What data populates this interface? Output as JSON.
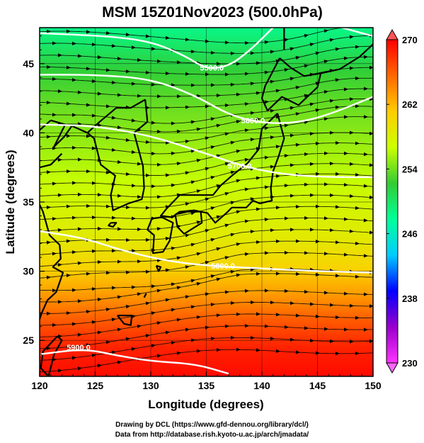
{
  "chart_data": {
    "type": "heatmap",
    "title": "MSM 15Z01Nov2023 (500.0hPa)",
    "xlabel": "Longitude (degrees)",
    "ylabel": "Latitude  (degrees)",
    "xlim": [
      120,
      150
    ],
    "ylim": [
      22.4,
      47.6
    ],
    "x_ticks": [
      120,
      125,
      130,
      135,
      140,
      145,
      150
    ],
    "y_ticks": [
      25,
      30,
      35,
      40,
      45
    ],
    "colorbar": {
      "min": 230,
      "max": 270,
      "ticks": [
        230,
        238,
        246,
        254,
        262,
        270
      ],
      "colors": [
        "#ff33ff",
        "#9900cc",
        "#0000ff",
        "#00ccff",
        "#00ff99",
        "#33cc33",
        "#ccff00",
        "#ffcc00",
        "#ff6600",
        "#ff0000"
      ]
    },
    "field_stops": [
      {
        "lat": 47.6,
        "value": 248.5
      },
      {
        "lat": 44.5,
        "value": 252
      },
      {
        "lat": 41.5,
        "value": 254
      },
      {
        "lat": 36.5,
        "value": 256.5
      },
      {
        "lat": 32.5,
        "value": 258.5
      },
      {
        "lat": 30.2,
        "value": 260.5
      },
      {
        "lat": 28.5,
        "value": 263
      },
      {
        "lat": 26.5,
        "value": 266
      },
      {
        "lat": 24.5,
        "value": 268.5
      },
      {
        "lat": 22.4,
        "value": 269.5
      }
    ],
    "contour_label_text": "5500.0",
    "contours": [
      {
        "label": "5900.0",
        "points": [
          [
            120,
            24.0
          ],
          [
            124,
            24.4
          ],
          [
            127,
            23.9
          ],
          [
            130,
            23.5
          ],
          [
            134,
            23.3
          ],
          [
            137,
            22.6
          ]
        ],
        "label_at": [
          123.5,
          24.5
        ]
      },
      {
        "label": "5800.0",
        "points": [
          [
            120,
            32.9
          ],
          [
            124,
            32.4
          ],
          [
            127,
            31.6
          ],
          [
            131,
            30.8
          ],
          [
            135,
            30.4
          ],
          [
            140,
            30.2
          ],
          [
            145,
            30.0
          ],
          [
            150,
            29.9
          ]
        ],
        "label_at": [
          136.5,
          30.4
        ]
      },
      {
        "label": "5700.0",
        "points": [
          [
            120,
            40.6
          ],
          [
            125,
            40.5
          ],
          [
            130,
            39.8
          ],
          [
            135,
            38.5
          ],
          [
            139,
            37.4
          ],
          [
            143,
            36.9
          ],
          [
            147,
            36.8
          ],
          [
            150,
            36.8
          ]
        ],
        "label_at": [
          138.0,
          37.6
        ]
      },
      {
        "label": "5600.0",
        "points": [
          [
            120,
            44.2
          ],
          [
            125,
            44.2
          ],
          [
            130,
            43.9
          ],
          [
            134,
            42.7
          ],
          [
            137,
            41.3
          ],
          [
            140,
            40.7
          ],
          [
            143,
            40.7
          ],
          [
            146,
            41.3
          ],
          [
            150,
            42.6
          ]
        ],
        "label_at": [
          139.2,
          40.9
        ]
      },
      {
        "label": "5500.0",
        "points": [
          [
            120,
            47.2
          ],
          [
            126,
            47.0
          ],
          [
            130,
            46.6
          ],
          [
            133,
            45.6
          ],
          [
            135,
            44.6
          ],
          [
            137,
            44.8
          ],
          [
            139,
            46.0
          ],
          [
            141,
            47.6
          ]
        ],
        "label_at": [
          135.5,
          44.7
        ]
      },
      {
        "label": "",
        "points": [
          [
            147.2,
            47.6
          ],
          [
            149,
            47.2
          ],
          [
            150,
            47.0
          ]
        ],
        "label_at": null
      }
    ],
    "coastlines": [
      [
        [
          141.6,
          45.4
        ],
        [
          142.6,
          44.7
        ],
        [
          143.8,
          44.1
        ],
        [
          145.3,
          44.3
        ],
        [
          145.0,
          43.3
        ],
        [
          143.3,
          42.0
        ],
        [
          141.8,
          42.6
        ],
        [
          140.5,
          41.6
        ],
        [
          140.0,
          42.5
        ],
        [
          140.3,
          43.4
        ],
        [
          141.6,
          45.4
        ]
      ],
      [
        [
          141.4,
          41.4
        ],
        [
          142.0,
          39.6
        ],
        [
          141.5,
          38.3
        ],
        [
          141.0,
          37.2
        ],
        [
          140.8,
          36.0
        ],
        [
          140.9,
          35.1
        ],
        [
          139.8,
          34.9
        ],
        [
          139.2,
          35.1
        ],
        [
          138.6,
          34.6
        ],
        [
          137.3,
          34.6
        ],
        [
          136.8,
          34.2
        ],
        [
          135.8,
          33.5
        ],
        [
          135.1,
          34.2
        ],
        [
          133.9,
          34.4
        ],
        [
          132.6,
          34.3
        ],
        [
          131.9,
          33.9
        ],
        [
          130.9,
          34.0
        ],
        [
          131.4,
          34.5
        ],
        [
          132.6,
          35.5
        ],
        [
          134.0,
          35.5
        ],
        [
          135.6,
          35.5
        ],
        [
          136.3,
          36.2
        ],
        [
          137.3,
          36.9
        ],
        [
          138.7,
          37.8
        ],
        [
          139.7,
          38.8
        ],
        [
          140.0,
          40.3
        ],
        [
          141.4,
          41.4
        ]
      ],
      [
        [
          130.1,
          33.8
        ],
        [
          131.0,
          33.9
        ],
        [
          132.0,
          33.5
        ],
        [
          131.7,
          32.2
        ],
        [
          131.1,
          31.4
        ],
        [
          130.2,
          31.3
        ],
        [
          130.3,
          32.6
        ],
        [
          129.7,
          33.0
        ],
        [
          130.1,
          33.8
        ]
      ],
      [
        [
          132.2,
          34.1
        ],
        [
          133.3,
          34.3
        ],
        [
          134.5,
          34.3
        ],
        [
          134.6,
          33.5
        ],
        [
          133.0,
          32.7
        ],
        [
          132.4,
          33.2
        ],
        [
          132.2,
          34.1
        ]
      ],
      [
        [
          121.6,
          25.3
        ],
        [
          122.0,
          25.0
        ],
        [
          121.3,
          24.0
        ],
        [
          120.8,
          22.4
        ],
        [
          120.1,
          23.0
        ],
        [
          120.3,
          24.2
        ],
        [
          121.6,
          25.3
        ]
      ],
      [
        [
          129.5,
          42.4
        ],
        [
          129.7,
          40.8
        ],
        [
          128.5,
          40.0
        ],
        [
          129.3,
          37.6
        ],
        [
          129.4,
          36.0
        ],
        [
          129.2,
          35.2
        ],
        [
          128.0,
          34.9
        ],
        [
          126.6,
          34.4
        ],
        [
          126.4,
          35.5
        ],
        [
          126.8,
          36.9
        ],
        [
          125.5,
          37.7
        ],
        [
          124.9,
          39.6
        ],
        [
          124.3,
          40.0
        ],
        [
          125.4,
          40.8
        ],
        [
          126.9,
          41.8
        ],
        [
          128.2,
          41.8
        ],
        [
          129.5,
          42.4
        ]
      ],
      [
        [
          121.0,
          40.9
        ],
        [
          122.3,
          40.6
        ],
        [
          121.3,
          39.0
        ],
        [
          122.2,
          39.7
        ],
        [
          122.9,
          40.5
        ],
        [
          124.3,
          40.0
        ]
      ],
      [
        [
          120.0,
          40.2
        ],
        [
          121.0,
          40.9
        ]
      ],
      [
        [
          121.8,
          31.9
        ],
        [
          121.9,
          30.9
        ],
        [
          121.2,
          30.3
        ],
        [
          122.1,
          29.9
        ],
        [
          121.5,
          28.5
        ],
        [
          120.7,
          27.9
        ],
        [
          120.2,
          27.0
        ],
        [
          119.9,
          26.3
        ]
      ],
      [
        [
          120.0,
          34.8
        ],
        [
          120.3,
          34.3
        ],
        [
          120.9,
          32.6
        ],
        [
          121.8,
          31.9
        ]
      ],
      [
        [
          122.0,
          38.5
        ],
        [
          121.0,
          37.7
        ],
        [
          120.0,
          37.5
        ]
      ],
      [
        [
          127.0,
          26.8
        ],
        [
          128.3,
          26.8
        ],
        [
          128.2,
          26.1
        ],
        [
          127.6,
          26.2
        ],
        [
          127.0,
          26.8
        ]
      ],
      [
        [
          130.5,
          30.4
        ],
        [
          130.7,
          30.0
        ],
        [
          130.9,
          30.3
        ],
        [
          130.5,
          30.4
        ]
      ],
      [
        [
          129.6,
          28.4
        ],
        [
          129.4,
          28.1
        ]
      ],
      [
        [
          126.4,
          33.5
        ],
        [
          126.9,
          33.5
        ],
        [
          126.6,
          33.2
        ],
        [
          126.2,
          33.3
        ],
        [
          126.4,
          33.5
        ]
      ],
      [
        [
          145.3,
          44.3
        ],
        [
          147.0,
          44.6
        ],
        [
          148.8,
          45.5
        ],
        [
          150.0,
          46.4
        ]
      ],
      [
        [
          142.0,
          46.0
        ],
        [
          142.0,
          47.6
        ]
      ],
      [
        [
          124.0,
          24.4
        ],
        [
          124.3,
          24.3
        ]
      ]
    ]
  },
  "credits": {
    "line1": "Drawing by DCL (https://www.gfd-dennou.org/library/dcl/)",
    "line2": "Data from http://database.rish.kyoto-u.ac.jp/arch/jmadata/"
  }
}
